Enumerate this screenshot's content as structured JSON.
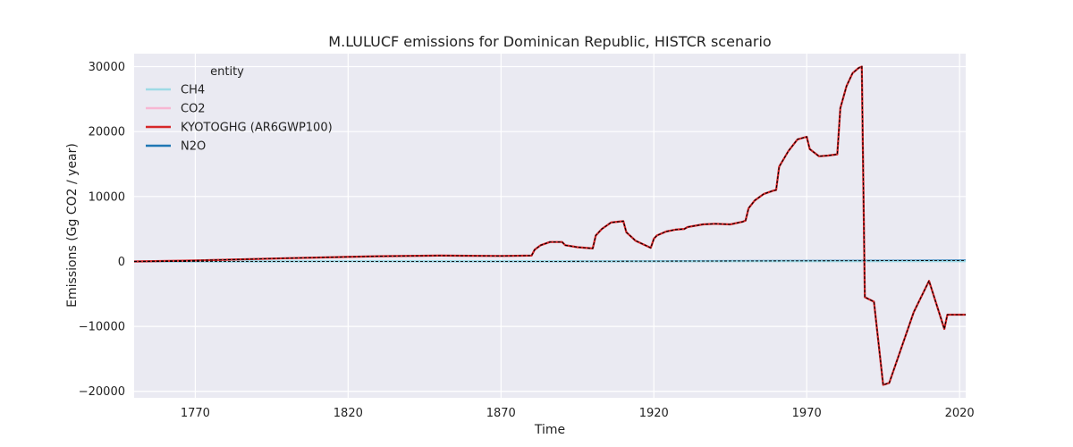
{
  "chart_data": {
    "type": "line",
    "title": "M.LULUCF emissions for Dominican Republic, HISTCR scenario",
    "xlabel": "Time",
    "ylabel": "Emissions (Gg CO2 / year)",
    "xlim": [
      1750,
      2022
    ],
    "ylim": [
      -21000,
      32000
    ],
    "xticks": [
      1770,
      1820,
      1870,
      1920,
      1970,
      2020
    ],
    "yticks": [
      -20000,
      -10000,
      0,
      10000,
      20000,
      30000
    ],
    "ytick_labels": [
      "−20000",
      "−10000",
      "0",
      "10000",
      "20000",
      "30000"
    ],
    "grid": true,
    "legend": {
      "title": "entity",
      "placement": "top-left"
    },
    "series": [
      {
        "name": "CH4",
        "color": "#9edae5",
        "x": [
          1750,
          1890,
          1891,
          2022
        ],
        "y": [
          0,
          30,
          20,
          20
        ]
      },
      {
        "name": "CO2",
        "color": "#f7b6d2",
        "x": [
          1750,
          1770,
          1800,
          1830,
          1850,
          1870,
          1880,
          1881,
          1883,
          1886,
          1890,
          1891,
          1895,
          1900,
          1901,
          1903,
          1906,
          1910,
          1911,
          1914,
          1919,
          1920,
          1921,
          1924,
          1927,
          1930,
          1931,
          1936,
          1940,
          1945,
          1949,
          1950,
          1951,
          1953,
          1956,
          1959,
          1960,
          1961,
          1964,
          1967,
          1970,
          1971,
          1974,
          1977,
          1980,
          1981,
          1983,
          1985,
          1987,
          1988,
          1989,
          1992,
          1995,
          1997,
          2005,
          2010,
          2015,
          2016,
          2022
        ],
        "y": [
          0,
          150,
          500,
          800,
          900,
          850,
          900,
          1800,
          2500,
          3000,
          3000,
          2500,
          2200,
          2000,
          4000,
          5000,
          6000,
          6200,
          4500,
          3200,
          2100,
          3500,
          4000,
          4600,
          4900,
          5000,
          5300,
          5700,
          5800,
          5700,
          6100,
          6300,
          8200,
          9400,
          10400,
          10900,
          11000,
          14600,
          17000,
          18800,
          19200,
          17300,
          16200,
          16300,
          16500,
          23600,
          27000,
          29000,
          29800,
          30000,
          -5500,
          -6200,
          -19000,
          -18700,
          -7800,
          -3000,
          -10400,
          -8200,
          -8200
        ]
      },
      {
        "name": "KYOTOGHG (AR6GWP100)",
        "color": "#d62728",
        "x": [
          1750,
          1770,
          1800,
          1830,
          1850,
          1870,
          1880,
          1881,
          1883,
          1886,
          1890,
          1891,
          1895,
          1900,
          1901,
          1903,
          1906,
          1910,
          1911,
          1914,
          1919,
          1920,
          1921,
          1924,
          1927,
          1930,
          1931,
          1936,
          1940,
          1945,
          1949,
          1950,
          1951,
          1953,
          1956,
          1959,
          1960,
          1961,
          1964,
          1967,
          1970,
          1971,
          1974,
          1977,
          1980,
          1981,
          1983,
          1985,
          1987,
          1988,
          1989,
          1992,
          1995,
          1997,
          2005,
          2010,
          2015,
          2016,
          2022
        ],
        "y": [
          0,
          150,
          500,
          800,
          900,
          850,
          900,
          1800,
          2500,
          3000,
          3000,
          2500,
          2200,
          2000,
          4000,
          5000,
          6000,
          6200,
          4500,
          3200,
          2100,
          3500,
          4000,
          4600,
          4900,
          5000,
          5300,
          5700,
          5800,
          5700,
          6100,
          6300,
          8200,
          9400,
          10400,
          10900,
          11000,
          14600,
          17000,
          18800,
          19200,
          17300,
          16200,
          16300,
          16500,
          23600,
          27000,
          29000,
          29800,
          30000,
          -5500,
          -6200,
          -19000,
          -18700,
          -7800,
          -3000,
          -10400,
          -8200,
          -8200
        ]
      },
      {
        "name": "N2O",
        "color": "#1f77b4",
        "x": [
          1750,
          1890,
          1891,
          2022
        ],
        "y": [
          0,
          5,
          10,
          150
        ]
      }
    ]
  }
}
